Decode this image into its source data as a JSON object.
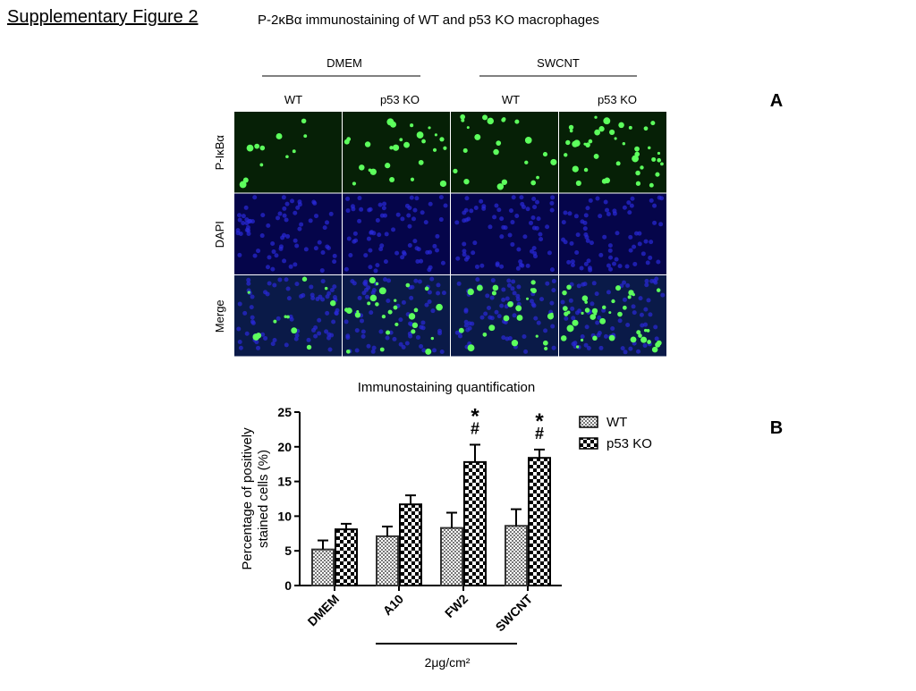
{
  "header": {
    "label": "Supplementary Figure 2",
    "title": "P-2κBα immunostaining of WT and p53 KO macrophages"
  },
  "panel_a": {
    "letter": "A",
    "groups": [
      "DMEM",
      "SWCNT"
    ],
    "columns": [
      "WT",
      "p53 KO",
      "WT",
      "p53 KO"
    ],
    "rows": [
      "P-IκBα",
      "DAPI",
      "Merge"
    ]
  },
  "panel_b": {
    "letter": "B"
  },
  "chart_data": {
    "type": "bar",
    "title": "Immunostaining quantification",
    "y_label": [
      "Percentage of positively",
      "stained cells (%)"
    ],
    "categories": [
      "DMEM",
      "A10",
      "FW2",
      "SWCNT"
    ],
    "x_group_label": "2μg/cm²",
    "series": [
      {
        "name": "WT",
        "color": "#777777",
        "values": [
          5.2,
          7.1,
          8.3,
          8.6
        ],
        "errors": [
          1.3,
          1.4,
          2.2,
          2.4
        ]
      },
      {
        "name": "p53 KO",
        "color": "#000000",
        "values": [
          8.1,
          11.7,
          17.8,
          18.4
        ],
        "errors": [
          0.8,
          1.3,
          2.5,
          1.2
        ],
        "markers": [
          null,
          null,
          [
            "*",
            "#"
          ],
          [
            "*",
            "#"
          ]
        ]
      }
    ],
    "ylim": [
      0,
      25
    ],
    "yticks": [
      0,
      5,
      10,
      15,
      20,
      25
    ],
    "grid": false
  }
}
